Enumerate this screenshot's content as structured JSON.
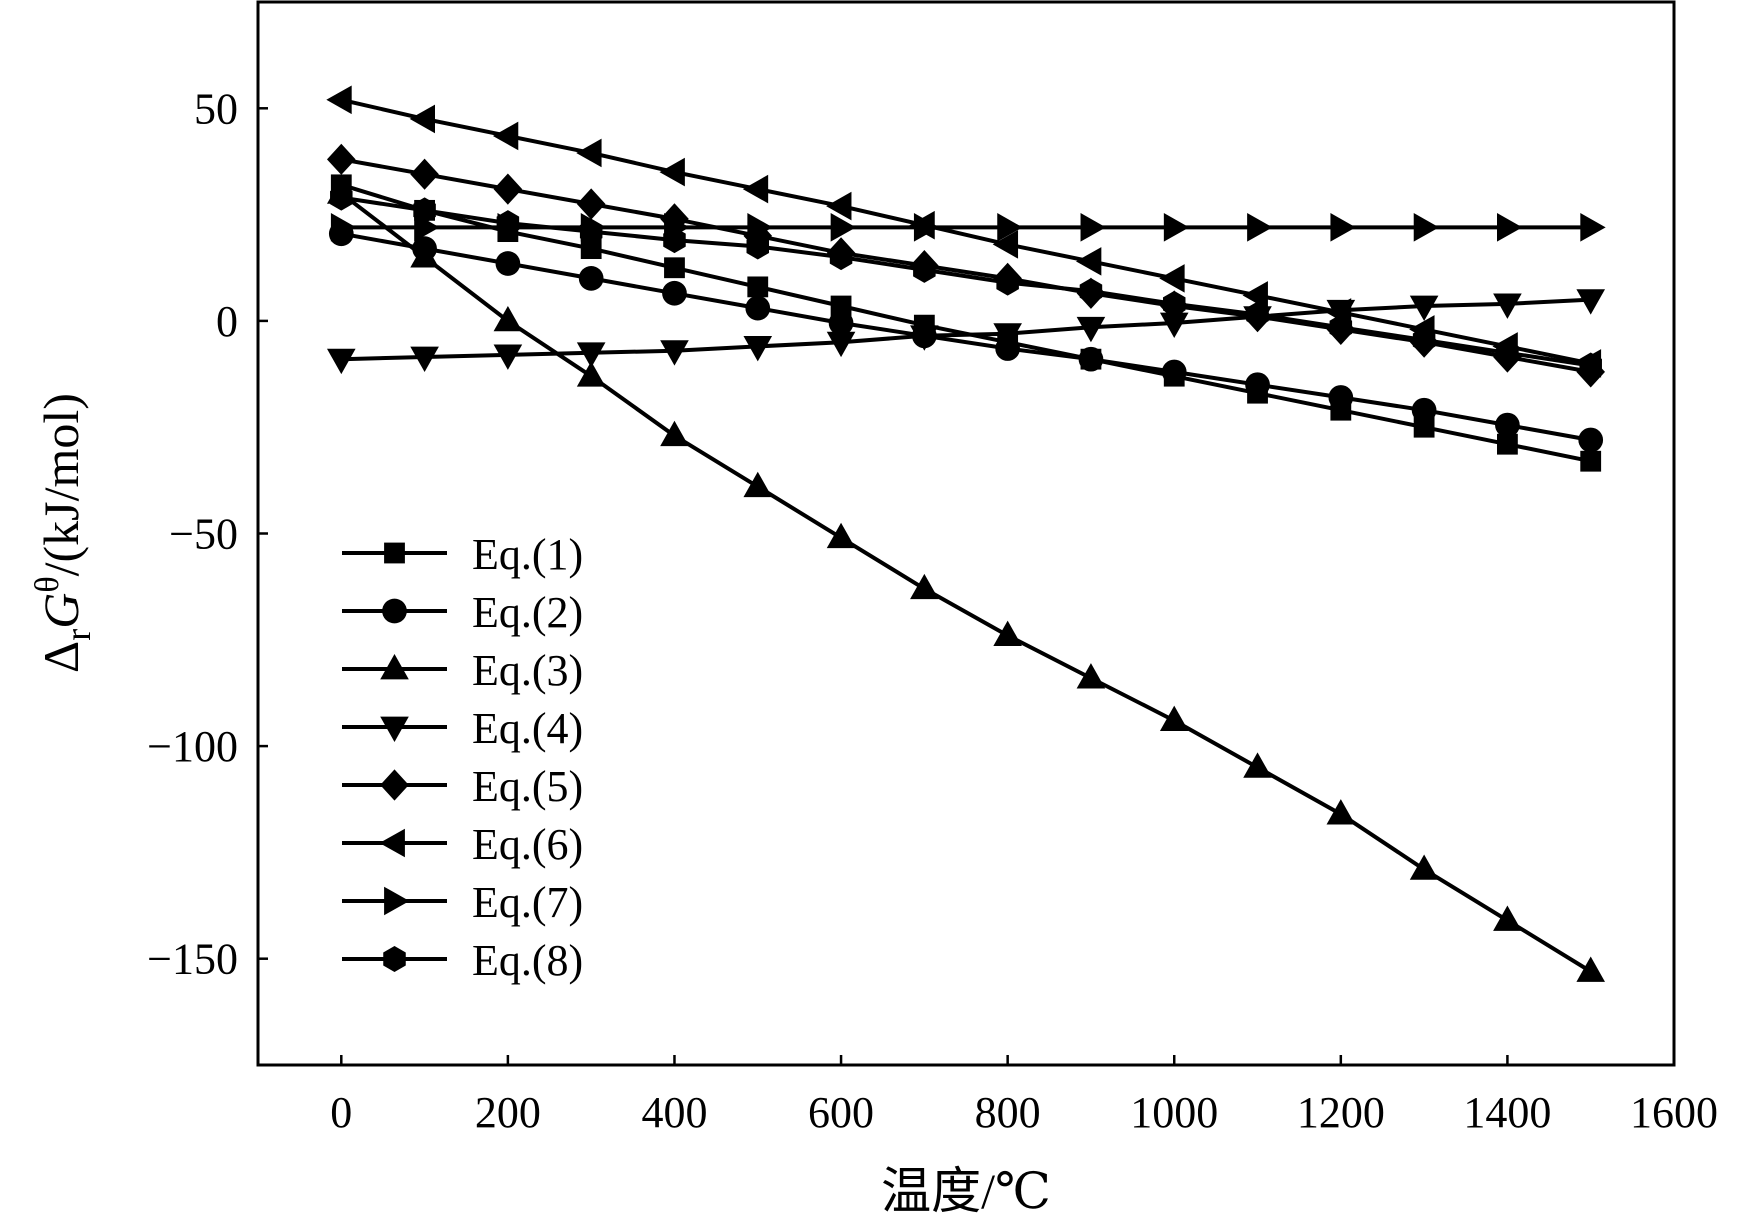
{
  "chart_data": {
    "type": "line",
    "xlabel": "温度/℃",
    "ylabel_parts": [
      "Δ",
      "r",
      "G",
      "θ",
      "/(kJ/mol)"
    ],
    "xlim": [
      -100,
      1600
    ],
    "ylim": [
      -175,
      75
    ],
    "xticks": [
      0,
      200,
      400,
      600,
      800,
      1000,
      1200,
      1400,
      1600
    ],
    "yticks": [
      50,
      0,
      -50,
      -100,
      -150
    ],
    "legend_position": "lower-left",
    "grid": false,
    "x": [
      0,
      100,
      200,
      300,
      400,
      500,
      600,
      700,
      800,
      900,
      1000,
      1100,
      1200,
      1300,
      1400,
      1500
    ],
    "series": [
      {
        "name": "Eq.(1)",
        "marker": "square",
        "values": [
          32,
          26,
          21,
          17,
          12.5,
          8,
          3.5,
          -1,
          -5,
          -9,
          -13,
          -17,
          -21,
          -25,
          -29,
          -33
        ]
      },
      {
        "name": "Eq.(2)",
        "marker": "circle",
        "values": [
          20.5,
          17,
          13.5,
          10,
          6.5,
          3,
          -0.5,
          -3.5,
          -6.5,
          -9,
          -12,
          -15,
          -18,
          -21,
          -24.5,
          -28
        ]
      },
      {
        "name": "Eq.(3)",
        "marker": "triangle-up",
        "values": [
          30,
          15,
          0,
          -13,
          -27,
          -39,
          -51,
          -63,
          -74,
          -84,
          -94,
          -105,
          -116,
          -129,
          -141,
          -153
        ]
      },
      {
        "name": "Eq.(4)",
        "marker": "triangle-down",
        "values": [
          -9,
          -8.5,
          -8,
          -7.5,
          -7,
          -6,
          -5,
          -3.5,
          -3,
          -1.5,
          -0.5,
          1,
          2.5,
          3.5,
          4,
          5
        ]
      },
      {
        "name": "Eq.(5)",
        "marker": "diamond",
        "values": [
          38,
          34.5,
          31,
          27.5,
          24,
          20,
          16,
          13,
          10,
          6.5,
          3.5,
          1,
          -2,
          -5,
          -8.5,
          -12
        ]
      },
      {
        "name": "Eq.(6)",
        "marker": "triangle-left",
        "values": [
          52,
          47.5,
          43.5,
          39.5,
          35,
          31,
          27,
          22.5,
          18,
          14,
          10,
          6,
          2,
          -2,
          -6,
          -10
        ]
      },
      {
        "name": "Eq.(7)",
        "marker": "triangle-right",
        "values": [
          22,
          22,
          22,
          22,
          22,
          22,
          22,
          22,
          22,
          22,
          22,
          22,
          22,
          22,
          22,
          22
        ]
      },
      {
        "name": "Eq.(8)",
        "marker": "hexagon",
        "values": [
          29,
          26,
          23,
          21,
          19,
          17.5,
          15,
          12,
          9,
          7,
          4,
          1.5,
          -1.5,
          -4.5,
          -7.5,
          -10.5
        ]
      }
    ]
  }
}
